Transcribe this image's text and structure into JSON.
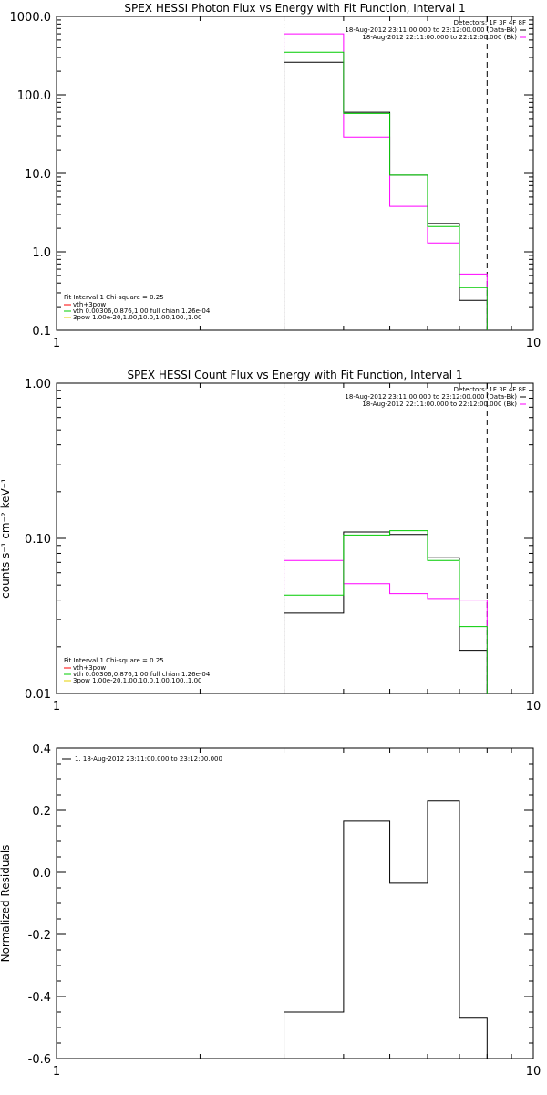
{
  "chart_data": [
    {
      "type": "line",
      "step": true,
      "title": "SPEX HESSI Photon Flux vs Energy with Fit Function, Interval 1",
      "xlabel": "",
      "ylabel": "",
      "xscale": "log",
      "yscale": "log",
      "xlim": [
        1,
        10
      ],
      "ylim": [
        0.1,
        1000
      ],
      "xticks": [
        "1",
        "10"
      ],
      "yticks": [
        {
          "v": 1000,
          "label": "1000.0"
        },
        {
          "v": 100,
          "label": "100.0"
        },
        {
          "v": 10,
          "label": "10.0"
        },
        {
          "v": 1,
          "label": "1.0"
        },
        {
          "v": 0.1,
          "label": "0.1"
        }
      ],
      "header": "Detectors: 1F 3F 4F 8F",
      "legend_top": [
        {
          "text": "18-Aug-2012 23:11:00.000 to 23:12:00.000 (Data-Bk)",
          "color": "#000000"
        },
        {
          "text": "18-Aug-2012 22:11:00.000 to 22:12:00.000 (Bk)",
          "color": "#ff00ff"
        }
      ],
      "legend_bottom": {
        "header": "Fit Interval 1    Chi-square = 0.25",
        "items": [
          {
            "text": "vth+3pow",
            "color": "#ff0000"
          },
          {
            "text": "vth 0.00306,0.876,1.00   full chian 1.26e-04",
            "color": "#00cc00"
          },
          {
            "text": "3pow 1.00e-20,1.00,10.0,1.00,100.,1.00",
            "color": "#e6d200"
          }
        ]
      },
      "vlines": [
        {
          "x": 3,
          "style": "dotted"
        },
        {
          "x": 8,
          "style": "dashed"
        }
      ],
      "bin_edges": [
        3,
        4,
        5,
        6,
        7,
        8
      ],
      "series": [
        {
          "color": "#000000",
          "values": [
            260,
            60,
            9.5,
            2.3,
            0.24
          ]
        },
        {
          "color": "#ff00ff",
          "values": [
            600,
            29,
            3.8,
            1.3,
            0.52
          ]
        },
        {
          "color": "#00cc00",
          "values": [
            350,
            58,
            9.5,
            2.1,
            0.35
          ]
        }
      ]
    },
    {
      "type": "line",
      "step": true,
      "title": "SPEX HESSI Count Flux vs Energy with Fit Function, Interval 1",
      "xlabel": "",
      "ylabel": "counts s⁻¹ cm⁻² keV⁻¹",
      "xscale": "log",
      "yscale": "log",
      "xlim": [
        1,
        10
      ],
      "ylim": [
        0.01,
        1.0
      ],
      "xticks": [
        "1",
        "10"
      ],
      "yticks": [
        {
          "v": 1,
          "label": "1.00"
        },
        {
          "v": 0.1,
          "label": "0.10"
        },
        {
          "v": 0.01,
          "label": "0.01"
        }
      ],
      "header": "Detectors: 1F 3F 4F 8F",
      "legend_top": [
        {
          "text": "18-Aug-2012 23:11:00.000 to 23:12:00.000 (Data-Bk)",
          "color": "#000000"
        },
        {
          "text": "18-Aug-2012 22:11:00.000 to 22:12:00.000 (Bk)",
          "color": "#ff00ff"
        }
      ],
      "legend_bottom": {
        "header": "Fit Interval 1    Chi-square = 0.25",
        "items": [
          {
            "text": "vth+3pow",
            "color": "#ff0000"
          },
          {
            "text": "vth 0.00306,0.876,1.00   full chian 1.26e-04",
            "color": "#00cc00"
          },
          {
            "text": "3pow 1.00e-20,1.00,10.0,1.00,100.,1.00",
            "color": "#e6d200"
          }
        ]
      },
      "vlines": [
        {
          "x": 3,
          "style": "dotted"
        },
        {
          "x": 8,
          "style": "dashed"
        }
      ],
      "bin_edges": [
        3,
        4,
        5,
        6,
        7,
        8
      ],
      "series": [
        {
          "color": "#000000",
          "values": [
            0.033,
            0.11,
            0.106,
            0.075,
            0.019
          ]
        },
        {
          "color": "#ff00ff",
          "values": [
            0.072,
            0.051,
            0.044,
            0.041,
            0.04
          ]
        },
        {
          "color": "#00cc00",
          "values": [
            0.043,
            0.105,
            0.112,
            0.072,
            0.027
          ]
        }
      ]
    },
    {
      "type": "line",
      "step": true,
      "title": "",
      "xlabel": "",
      "ylabel": "Normalized Residuals",
      "xscale": "log",
      "yscale": "linear",
      "xlim": [
        1,
        10
      ],
      "ylim": [
        -0.6,
        0.4
      ],
      "xticks": [
        "1",
        "10"
      ],
      "yticks": [
        {
          "v": 0.4,
          "label": "0.4"
        },
        {
          "v": 0.2,
          "label": "0.2"
        },
        {
          "v": 0.0,
          "label": "0.0"
        },
        {
          "v": -0.2,
          "label": "-0.2"
        },
        {
          "v": -0.4,
          "label": "-0.4"
        },
        {
          "v": -0.6,
          "label": "-0.6"
        }
      ],
      "legend_top": [
        {
          "text": "1. 18-Aug-2012 23:11:00.000 to 23:12:00.000",
          "color": "#000000"
        }
      ],
      "bin_edges": [
        3,
        4,
        5,
        6,
        7,
        8
      ],
      "series": [
        {
          "color": "#000000",
          "values": [
            -0.45,
            0.165,
            -0.035,
            0.23,
            -0.47
          ]
        }
      ]
    }
  ]
}
